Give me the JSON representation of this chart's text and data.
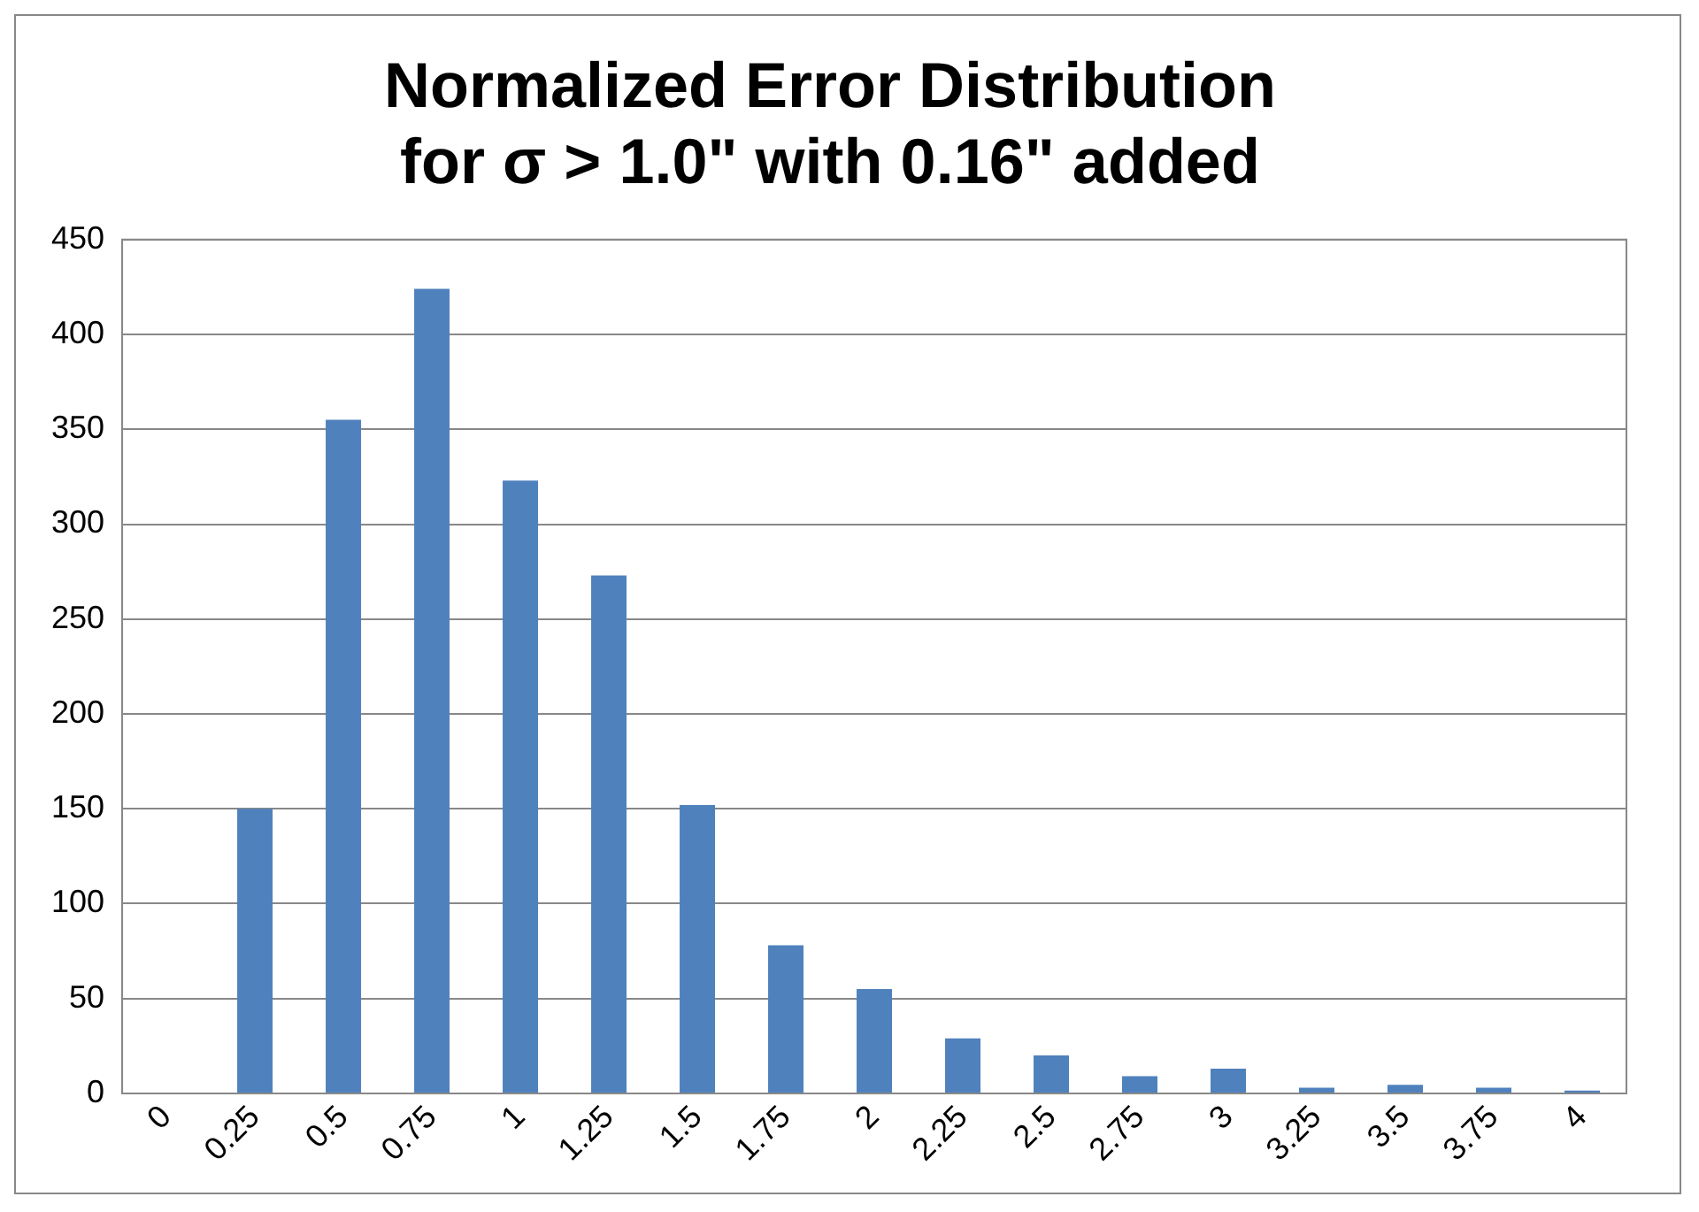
{
  "chart_data": {
    "type": "bar",
    "title": [
      "Normalized Error Distribution",
      "for σ > 1.0\" with 0.16\" added"
    ],
    "categories": [
      "0",
      "0.25",
      "0.5",
      "0.75",
      "1",
      "1.25",
      "1.5",
      "1.75",
      "2",
      "2.25",
      "2.5",
      "2.75",
      "3",
      "3.25",
      "3.5",
      "3.75",
      "4"
    ],
    "values": [
      0,
      150,
      355,
      424,
      323,
      273,
      152,
      78,
      55,
      29,
      20,
      9,
      13,
      3,
      4.5,
      3,
      1.5
    ],
    "color": "#4f81bd",
    "ylim": [
      0,
      450
    ],
    "yticks": [
      0,
      50,
      100,
      150,
      200,
      250,
      300,
      350,
      400,
      450
    ],
    "grid": "y",
    "legend": false
  }
}
